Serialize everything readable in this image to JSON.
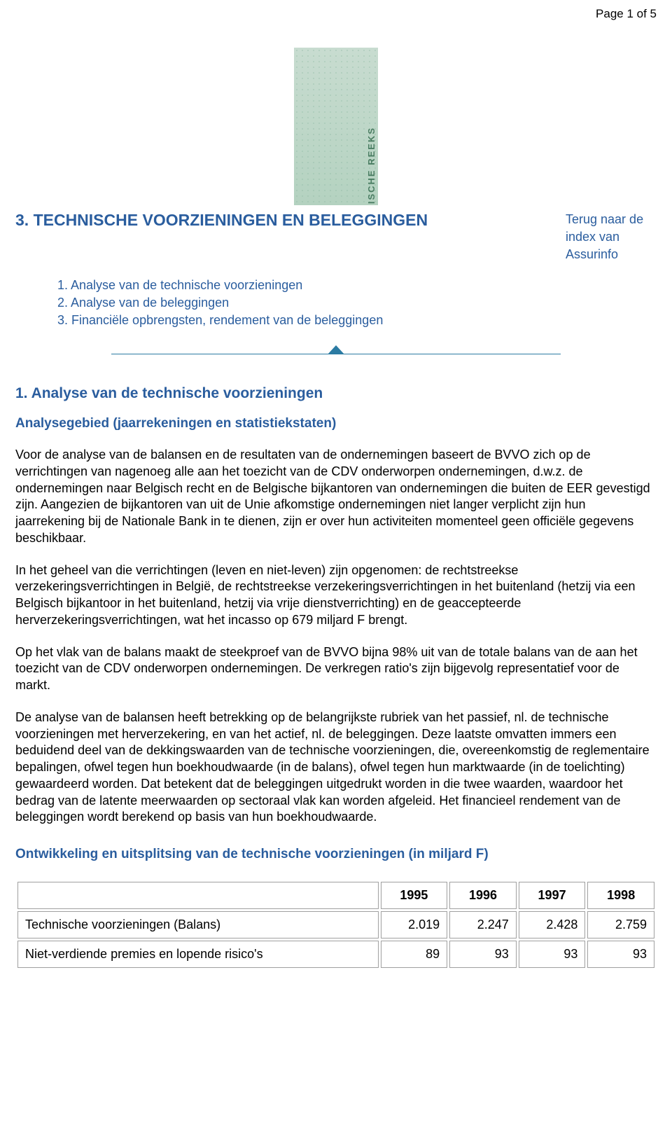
{
  "page_number": "Page 1 of 5",
  "banner": {
    "vertical_label": "STATISTISCHE REEKS"
  },
  "title": "3. TECHNISCHE VOORZIENINGEN EN BELEGGINGEN",
  "back_link": "Terug naar de index van Assurinfo",
  "toc": [
    "1. Analyse van de technische voorzieningen",
    "2. Analyse van de beleggingen",
    "3. Financiële opbrengsten, rendement van de beleggingen"
  ],
  "section1": {
    "heading": "1. Analyse van de technische voorzieningen",
    "subheading": "Analysegebied (jaarrekeningen en statistiekstaten)",
    "paragraphs": [
      "Voor de analyse van de balansen en de resultaten van de ondernemingen baseert de BVVO zich op de verrichtingen van nagenoeg alle aan het toezicht van de CDV onderworpen ondernemingen, d.w.z. de ondernemingen naar Belgisch recht en de Belgische bijkantoren van ondernemingen die buiten de EER gevestigd zijn. Aangezien de bijkantoren van uit de Unie afkomstige ondernemingen niet langer verplicht zijn hun jaarrekening bij de Nationale Bank in te dienen, zijn er over hun activiteiten momenteel geen officiële gegevens beschikbaar.",
      "In het geheel van die verrichtingen (leven en niet-leven) zijn opgenomen: de rechtstreekse verzekeringsverrichtingen in België, de rechtstreekse verzekeringsverrichtingen in het buitenland (hetzij via een Belgisch bijkantoor in het buitenland, hetzij via vrije dienstverrichting) en de geaccepteerde herverzekeringsverrichtingen, wat het incasso op 679 miljard F brengt.",
      "Op het vlak van de balans maakt de steekproef van de BVVO bijna 98% uit van de totale balans van de aan het toezicht van de CDV onderworpen ondernemingen. De verkregen ratio's zijn bijgevolg representatief voor de markt.",
      "De analyse van de balansen heeft betrekking op de belangrijkste rubriek van het passief, nl. de technische voorzieningen met herverzekering, en van het actief, nl. de beleggingen. Deze laatste omvatten immers een beduidend deel van de dekkingswaarden van de technische voorzieningen, die, overeenkomstig de reglementaire bepalingen, ofwel tegen hun boekhoudwaarde (in de balans), ofwel tegen hun marktwaarde (in de toelichting) gewaardeerd worden. Dat betekent dat de beleggingen uitgedrukt worden in die twee waarden, waardoor het bedrag van de latente meerwaarden op sectoraal vlak kan worden afgeleid. Het financieel rendement van de beleggingen wordt berekend op basis van hun boekhoudwaarde."
    ],
    "table_heading": "Ontwikkeling en uitsplitsing van de technische voorzieningen (in miljard F)",
    "table": {
      "years": [
        "1995",
        "1996",
        "1997",
        "1998"
      ],
      "rows": [
        {
          "label": "Technische voorzieningen (Balans)",
          "values": [
            "2.019",
            "2.247",
            "2.428",
            "2.759"
          ]
        },
        {
          "label": "Niet-verdiende premies en lopende risico's",
          "values": [
            "89",
            "93",
            "93",
            "93"
          ]
        }
      ]
    }
  }
}
